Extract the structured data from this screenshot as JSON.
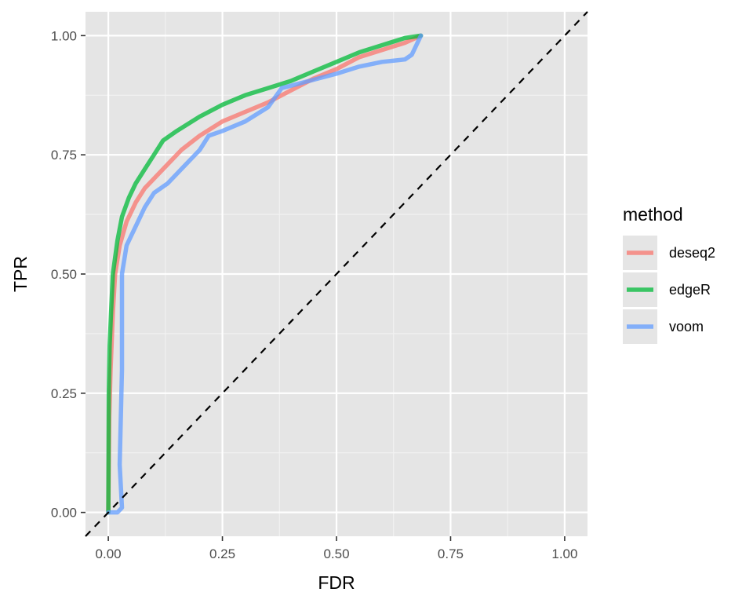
{
  "chart_data": {
    "type": "line",
    "title": "",
    "xlabel": "FDR",
    "ylabel": "TPR",
    "xlim": [
      -0.05,
      1.05
    ],
    "ylim": [
      -0.05,
      1.05
    ],
    "x_ticks": [
      0,
      0.25,
      0.5,
      0.75,
      1
    ],
    "x_tick_labels": [
      "0.00",
      "0.25",
      "0.50",
      "0.75",
      "1.00"
    ],
    "y_ticks": [
      0,
      0.25,
      0.5,
      0.75,
      1
    ],
    "y_tick_labels": [
      "0.00",
      "0.25",
      "0.50",
      "0.75",
      "1.00"
    ],
    "grid": true,
    "background": "#e5e5e5",
    "reference_line": {
      "style": "dashed",
      "color": "#000000",
      "points": [
        [
          -0.05,
          -0.05
        ],
        [
          1.05,
          1.05
        ]
      ]
    },
    "legend": {
      "title": "method",
      "position": "right"
    },
    "series": [
      {
        "name": "deseq2",
        "color": "#f8766d",
        "points": [
          [
            0,
            0
          ],
          [
            0.002,
            0.2
          ],
          [
            0.005,
            0.3
          ],
          [
            0.01,
            0.42
          ],
          [
            0.015,
            0.5
          ],
          [
            0.025,
            0.56
          ],
          [
            0.04,
            0.61
          ],
          [
            0.06,
            0.65
          ],
          [
            0.08,
            0.68
          ],
          [
            0.1,
            0.7
          ],
          [
            0.13,
            0.73
          ],
          [
            0.16,
            0.76
          ],
          [
            0.2,
            0.79
          ],
          [
            0.25,
            0.82
          ],
          [
            0.3,
            0.84
          ],
          [
            0.35,
            0.86
          ],
          [
            0.4,
            0.885
          ],
          [
            0.45,
            0.91
          ],
          [
            0.5,
            0.93
          ],
          [
            0.55,
            0.955
          ],
          [
            0.6,
            0.97
          ],
          [
            0.65,
            0.985
          ],
          [
            0.685,
            1
          ]
        ]
      },
      {
        "name": "edgeR",
        "color": "#00ba38",
        "points": [
          [
            0,
            0
          ],
          [
            0.001,
            0.25
          ],
          [
            0.003,
            0.35
          ],
          [
            0.006,
            0.42
          ],
          [
            0.01,
            0.5
          ],
          [
            0.02,
            0.57
          ],
          [
            0.03,
            0.62
          ],
          [
            0.045,
            0.66
          ],
          [
            0.06,
            0.69
          ],
          [
            0.08,
            0.72
          ],
          [
            0.1,
            0.75
          ],
          [
            0.12,
            0.78
          ],
          [
            0.15,
            0.8
          ],
          [
            0.2,
            0.83
          ],
          [
            0.25,
            0.855
          ],
          [
            0.3,
            0.875
          ],
          [
            0.35,
            0.89
          ],
          [
            0.4,
            0.905
          ],
          [
            0.45,
            0.925
          ],
          [
            0.5,
            0.945
          ],
          [
            0.55,
            0.965
          ],
          [
            0.6,
            0.98
          ],
          [
            0.65,
            0.995
          ],
          [
            0.685,
            1
          ]
        ]
      },
      {
        "name": "voom",
        "color": "#619cff",
        "points": [
          [
            0,
            0
          ],
          [
            0.01,
            0
          ],
          [
            0.02,
            0
          ],
          [
            0.03,
            0.01
          ],
          [
            0.025,
            0.1
          ],
          [
            0.03,
            0.3
          ],
          [
            0.03,
            0.5
          ],
          [
            0.04,
            0.56
          ],
          [
            0.06,
            0.6
          ],
          [
            0.08,
            0.64
          ],
          [
            0.1,
            0.67
          ],
          [
            0.13,
            0.69
          ],
          [
            0.16,
            0.72
          ],
          [
            0.2,
            0.76
          ],
          [
            0.22,
            0.79
          ],
          [
            0.25,
            0.8
          ],
          [
            0.3,
            0.82
          ],
          [
            0.35,
            0.85
          ],
          [
            0.38,
            0.89
          ],
          [
            0.42,
            0.9
          ],
          [
            0.5,
            0.92
          ],
          [
            0.55,
            0.935
          ],
          [
            0.6,
            0.945
          ],
          [
            0.65,
            0.95
          ],
          [
            0.665,
            0.96
          ],
          [
            0.685,
            1
          ]
        ]
      }
    ]
  }
}
